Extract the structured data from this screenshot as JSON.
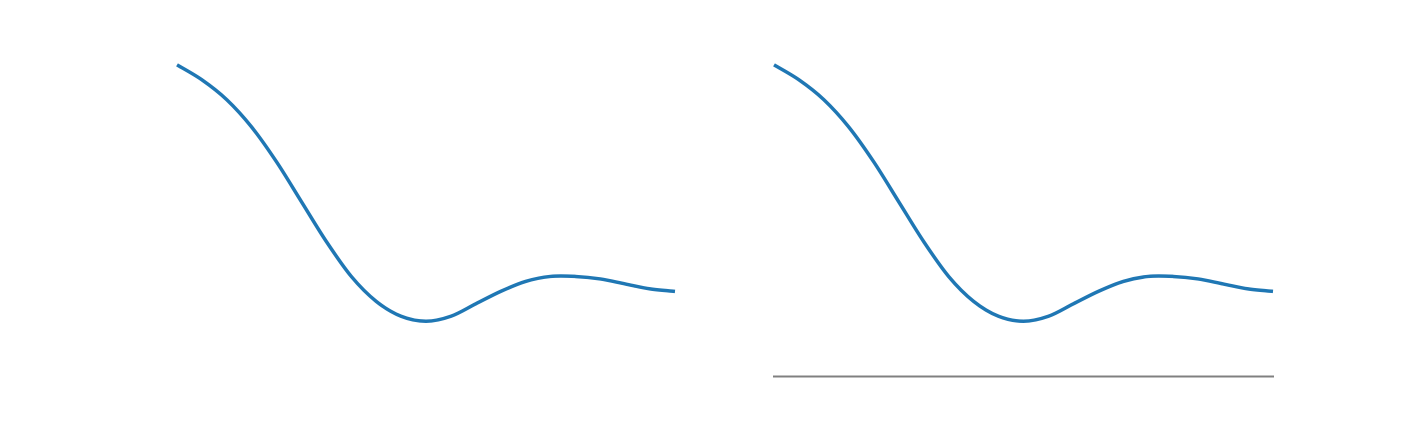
{
  "chart_data": [
    {
      "type": "line",
      "title": "",
      "xlabel": "",
      "ylabel": "",
      "xlim": [
        0,
        10
      ],
      "ylim": [
        -0.35,
        1.0
      ],
      "grid": false,
      "legend": null,
      "x_axis_visible": false,
      "series": [
        {
          "color": "#1f77b4",
          "x": [
            0,
            0.5,
            1,
            1.5,
            2,
            2.5,
            3,
            3.5,
            4,
            4.5,
            5,
            5.5,
            6,
            6.5,
            7,
            7.5,
            8,
            8.5,
            9,
            9.5,
            10
          ],
          "y": [
            0.9,
            0.84,
            0.76,
            0.65,
            0.51,
            0.35,
            0.19,
            0.05,
            -0.05,
            -0.11,
            -0.13,
            -0.11,
            -0.06,
            -0.01,
            0.03,
            0.05,
            0.05,
            0.04,
            0.02,
            0.0,
            -0.01
          ]
        }
      ]
    },
    {
      "type": "line",
      "title": "",
      "xlabel": "",
      "ylabel": "",
      "xlim": [
        0,
        10
      ],
      "ylim": [
        -0.35,
        1.0
      ],
      "grid": false,
      "legend": null,
      "x_axis_visible": true,
      "axis_color": "#808080",
      "series": [
        {
          "color": "#1f77b4",
          "x": [
            0,
            0.5,
            1,
            1.5,
            2,
            2.5,
            3,
            3.5,
            4,
            4.5,
            5,
            5.5,
            6,
            6.5,
            7,
            7.5,
            8,
            8.5,
            9,
            9.5,
            10
          ],
          "y": [
            0.9,
            0.84,
            0.76,
            0.65,
            0.51,
            0.35,
            0.19,
            0.05,
            -0.05,
            -0.11,
            -0.13,
            -0.11,
            -0.06,
            -0.01,
            0.03,
            0.05,
            0.05,
            0.04,
            0.02,
            0.0,
            -0.01
          ]
        }
      ]
    }
  ]
}
